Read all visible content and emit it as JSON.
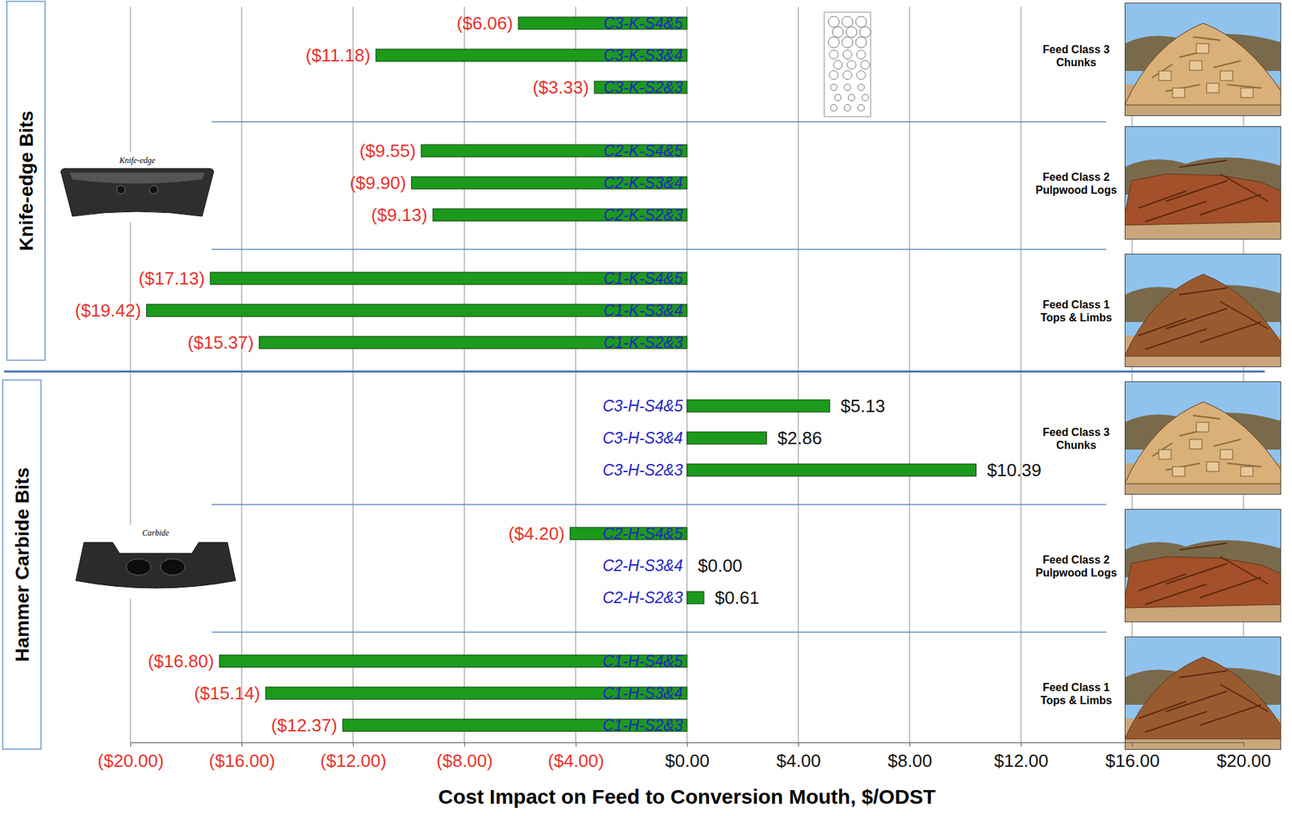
{
  "chart_data": {
    "type": "bar",
    "orientation": "horizontal",
    "x_label": "Cost Impact on Feed to Conversion Mouth, $/ODST",
    "xlim": [
      -20,
      20
    ],
    "xticks": [
      {
        "value": -20,
        "label": "($20.00)"
      },
      {
        "value": -16,
        "label": "($16.00)"
      },
      {
        "value": -12,
        "label": "($12.00)"
      },
      {
        "value": -8,
        "label": "($8.00)"
      },
      {
        "value": -4,
        "label": "($4.00)"
      },
      {
        "value": 0,
        "label": "$0.00"
      },
      {
        "value": 4,
        "label": "$4.00"
      },
      {
        "value": 8,
        "label": "$8.00"
      },
      {
        "value": 12,
        "label": "$12.00"
      },
      {
        "value": 16,
        "label": "$16.00"
      },
      {
        "value": 20,
        "label": "$20.00"
      }
    ],
    "grid": true,
    "data_labels": true,
    "color": "#1c9a1c",
    "panels": [
      {
        "title": "Knife-edge Bits",
        "bit_label": "Knife-edge",
        "groups": [
          {
            "title": "Feed Class 3",
            "subtitle": "Chunks",
            "categories": [
              "C3-K-S4&5",
              "C3-K-S3&4",
              "C3-K-S2&3"
            ],
            "values": [
              -6.06,
              -11.18,
              -3.33
            ],
            "value_labels": [
              "($6.06)",
              "($11.18)",
              "($3.33)"
            ]
          },
          {
            "title": "Feed Class 2",
            "subtitle": "Pulpwood Logs",
            "categories": [
              "C2-K-S4&5",
              "C2-K-S3&4",
              "C2-K-S2&3"
            ],
            "values": [
              -9.55,
              -9.9,
              -9.13
            ],
            "value_labels": [
              "($9.55)",
              "($9.90)",
              "($9.13)"
            ]
          },
          {
            "title": "Feed Class 1",
            "subtitle": "Tops & Limbs",
            "categories": [
              "C1-K-S4&5",
              "C1-K-S3&4",
              "C1-K-S2&3"
            ],
            "values": [
              -17.13,
              -19.42,
              -15.37
            ],
            "value_labels": [
              "($17.13)",
              "($19.42)",
              "($15.37)"
            ]
          }
        ]
      },
      {
        "title": "Hammer Carbide Bits",
        "bit_label": "Carbide",
        "groups": [
          {
            "title": "Feed Class 3",
            "subtitle": "Chunks",
            "categories": [
              "C3-H-S4&5",
              "C3-H-S3&4",
              "C3-H-S2&3"
            ],
            "values": [
              5.13,
              2.86,
              10.39
            ],
            "value_labels": [
              "$5.13",
              "$2.86",
              "$10.39"
            ]
          },
          {
            "title": "Feed Class 2",
            "subtitle": "Pulpwood Logs",
            "categories": [
              "C2-H-S4&5",
              "C2-H-S3&4",
              "C2-H-S2&3"
            ],
            "values": [
              -4.2,
              0,
              0.61
            ],
            "value_labels": [
              "($4.20)",
              "$0.00",
              "$0.61"
            ]
          },
          {
            "title": "Feed Class 1",
            "subtitle": "Tops & Limbs",
            "categories": [
              "C1-H-S4&5",
              "C1-H-S3&4",
              "C1-H-S2&3"
            ],
            "values": [
              -16.8,
              -15.14,
              -12.37
            ],
            "value_labels": [
              "($16.80)",
              "($15.14)",
              "($12.37)"
            ]
          }
        ]
      }
    ]
  }
}
